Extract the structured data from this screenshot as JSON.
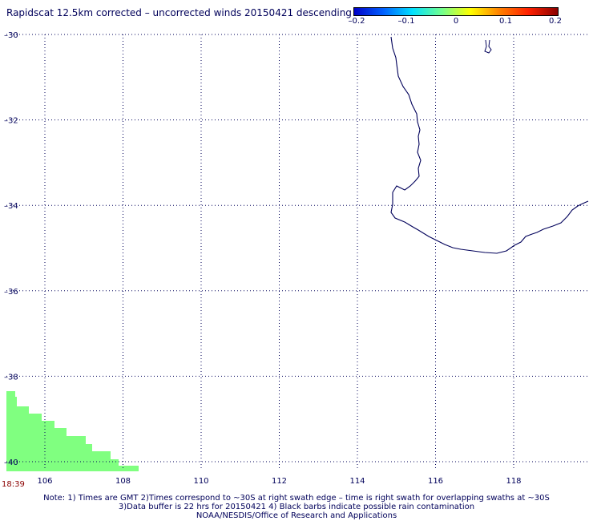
{
  "title": "Rapidscat 12.5km corrected – uncorrected winds 20150421 descending",
  "colorbar": {
    "ticks": [
      "–0.2",
      "–0.1",
      "0",
      "0.1",
      "0.2"
    ],
    "colors": [
      "#0000c8",
      "#0060ff",
      "#00e0ff",
      "#70ff90",
      "#ffff00",
      "#ff8000",
      "#ff2000",
      "#8b0000"
    ]
  },
  "map": {
    "lon_ticks": [
      "106",
      "108",
      "110",
      "112",
      "114",
      "116",
      "118"
    ],
    "lat_ticks": [
      "–30",
      "–32",
      "–34",
      "–36",
      "–38",
      "–40"
    ],
    "grid_color": "#00005a",
    "coast_color": "#00005a",
    "swath_color": "#80ff80"
  },
  "time_label": "18:39",
  "footnotes": [
    "Note: 1) Times are GMT 2)Times correspond to ~30S at right swath edge – time is right swath for overlapping swaths at ~30S",
    "3)Data buffer is 22 hrs for 20150421 4) Black barbs indicate possible rain contamination",
    "NOAA/NESDIS/Office of Research and Applications"
  ]
}
